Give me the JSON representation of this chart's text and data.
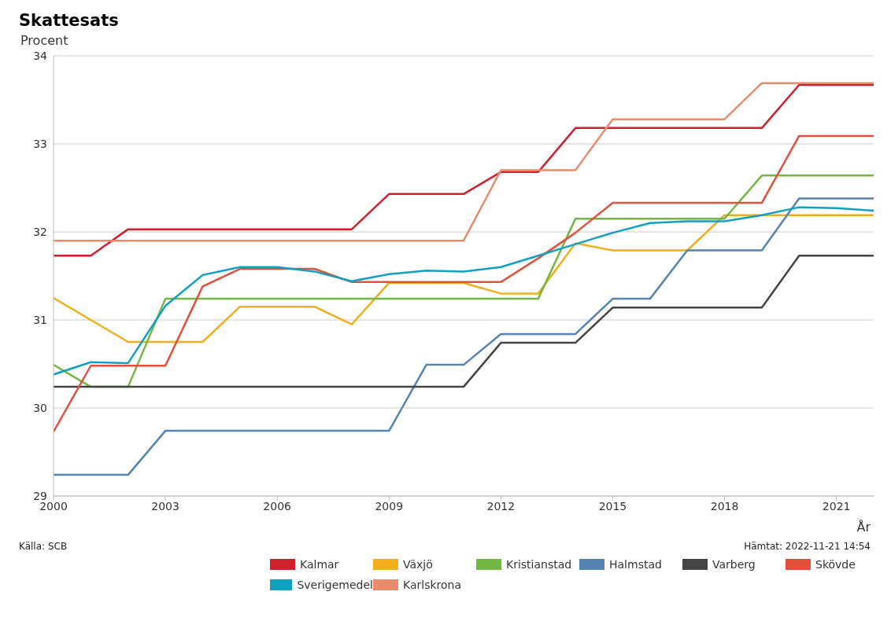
{
  "chart_data": {
    "type": "line",
    "title": "Skattesats",
    "ylabel": "Procent",
    "xlabel": "År",
    "x": [
      2000,
      2001,
      2002,
      2003,
      2004,
      2005,
      2006,
      2007,
      2008,
      2009,
      2010,
      2011,
      2012,
      2013,
      2014,
      2015,
      2016,
      2017,
      2018,
      2019,
      2020,
      2021,
      2022
    ],
    "xlim": [
      2000,
      2022
    ],
    "xticks": [
      2000,
      2003,
      2006,
      2009,
      2012,
      2015,
      2018,
      2021
    ],
    "ylim": [
      29,
      34
    ],
    "yticks": [
      29,
      30,
      31,
      32,
      33,
      34
    ],
    "grid": "y",
    "legend": "bottom",
    "marker": "none",
    "line_style": "solid",
    "annotations": [
      "Källa: SCB",
      "Hämtat: 2022-11-21 14:54"
    ],
    "series": [
      {
        "name": "Kalmar",
        "color": "#d0202e",
        "values": [
          31.73,
          31.73,
          32.03,
          32.03,
          32.03,
          32.03,
          32.03,
          32.03,
          32.03,
          32.43,
          32.43,
          32.43,
          32.68,
          32.68,
          33.18,
          33.18,
          33.18,
          33.18,
          33.18,
          33.18,
          33.67,
          33.67,
          33.67
        ]
      },
      {
        "name": "Växjö",
        "color": "#f2ae1c",
        "values": [
          31.25,
          31.0,
          30.75,
          30.75,
          30.75,
          31.15,
          31.15,
          31.15,
          30.95,
          31.42,
          31.42,
          31.42,
          31.3,
          31.3,
          31.87,
          31.79,
          31.79,
          31.79,
          32.19,
          32.19,
          32.19,
          32.19,
          32.19
        ]
      },
      {
        "name": "Kristianstad",
        "color": "#72b743",
        "values": [
          30.49,
          30.24,
          30.24,
          31.24,
          31.24,
          31.24,
          31.24,
          31.24,
          31.24,
          31.24,
          31.24,
          31.24,
          31.24,
          31.24,
          32.15,
          32.15,
          32.15,
          32.15,
          32.15,
          32.64,
          32.64,
          32.64,
          32.64
        ]
      },
      {
        "name": "Halmstad",
        "color": "#5584b0",
        "values": [
          29.24,
          29.24,
          29.24,
          29.74,
          29.74,
          29.74,
          29.74,
          29.74,
          29.74,
          29.74,
          30.49,
          30.49,
          30.84,
          30.84,
          30.84,
          31.24,
          31.24,
          31.79,
          31.79,
          31.79,
          32.38,
          32.38,
          32.38
        ]
      },
      {
        "name": "Varberg",
        "color": "#444444",
        "values": [
          30.24,
          30.24,
          30.24,
          30.24,
          30.24,
          30.24,
          30.24,
          30.24,
          30.24,
          30.24,
          30.24,
          30.24,
          30.74,
          30.74,
          30.74,
          31.14,
          31.14,
          31.14,
          31.14,
          31.14,
          31.73,
          31.73,
          31.73
        ]
      },
      {
        "name": "Skövde",
        "color": "#e0503a",
        "values": [
          29.73,
          30.48,
          30.48,
          30.48,
          31.38,
          31.58,
          31.58,
          31.58,
          31.43,
          31.43,
          31.43,
          31.43,
          31.43,
          31.7,
          31.99,
          32.33,
          32.33,
          32.33,
          32.33,
          32.33,
          33.09,
          33.09,
          33.09
        ]
      },
      {
        "name": "Sverigemedel",
        "color": "#12a0c0",
        "values": [
          30.38,
          30.52,
          30.51,
          31.16,
          31.51,
          31.6,
          31.6,
          31.55,
          31.44,
          31.52,
          31.56,
          31.55,
          31.6,
          31.73,
          31.86,
          31.99,
          32.1,
          32.12,
          32.12,
          32.19,
          32.28,
          32.27,
          32.24
        ]
      },
      {
        "name": "Karlskrona",
        "color": "#e88c6c",
        "values": [
          31.9,
          31.9,
          31.9,
          31.9,
          31.9,
          31.9,
          31.9,
          31.9,
          31.9,
          31.9,
          31.9,
          31.9,
          32.7,
          32.7,
          32.7,
          33.28,
          33.28,
          33.28,
          33.28,
          33.69,
          33.69,
          33.69,
          33.69
        ]
      }
    ]
  }
}
